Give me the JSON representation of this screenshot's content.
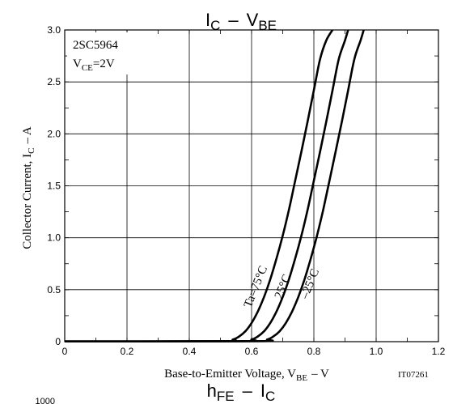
{
  "chart_data": {
    "type": "line",
    "title": {
      "main": "I",
      "main_sub": "C",
      "sep": "–",
      "second": "V",
      "second_sub": "BE"
    },
    "device": "2SC5964",
    "condition": {
      "main": "V",
      "sub": "CE",
      "rest": "=2V"
    },
    "xlabel": {
      "main": "Base-to-Emitter Voltage, V",
      "sub": "BE",
      "unit": "–  V"
    },
    "ylabel": {
      "main": "Collector Current, I",
      "sub": "C",
      "unit": "–  A"
    },
    "doc_code": "IT07261",
    "xlim": [
      0,
      1.2
    ],
    "ylim": [
      0,
      3.0
    ],
    "x_ticks": [
      "0",
      "0.2",
      "0.4",
      "0.6",
      "0.8",
      "1.0",
      "1.2"
    ],
    "x_tick_values": [
      0,
      0.2,
      0.4,
      0.6,
      0.8,
      1.0,
      1.2
    ],
    "y_ticks": [
      "0",
      "0.5",
      "1.0",
      "1.5",
      "2.0",
      "2.5",
      "3.0"
    ],
    "y_tick_values": [
      0,
      0.5,
      1.0,
      1.5,
      2.0,
      2.5,
      3.0
    ],
    "x_minor_step": 0.1,
    "y_minor_step": 0.25,
    "grid": true,
    "series": [
      {
        "name": "Ta=75°C",
        "x": [
          0,
          0.5,
          0.54,
          0.56,
          0.58,
          0.6,
          0.62,
          0.64,
          0.66,
          0.68,
          0.7,
          0.72,
          0.74,
          0.76,
          0.78,
          0.8,
          0.82,
          0.84,
          0.86
        ],
        "y": [
          0.002,
          0.005,
          0.02,
          0.05,
          0.1,
          0.18,
          0.29,
          0.43,
          0.6,
          0.8,
          1.02,
          1.27,
          1.55,
          1.83,
          2.12,
          2.42,
          2.72,
          2.9,
          3.0
        ]
      },
      {
        "name": "25°C",
        "x": [
          0,
          0.56,
          0.6,
          0.62,
          0.64,
          0.66,
          0.68,
          0.7,
          0.72,
          0.74,
          0.76,
          0.78,
          0.8,
          0.82,
          0.84,
          0.86,
          0.88,
          0.9,
          0.91
        ],
        "y": [
          0.002,
          0.005,
          0.02,
          0.05,
          0.1,
          0.18,
          0.29,
          0.43,
          0.6,
          0.8,
          1.02,
          1.27,
          1.55,
          1.83,
          2.12,
          2.42,
          2.72,
          2.9,
          3.0
        ]
      },
      {
        "name": "–25°C",
        "x": [
          0,
          0.61,
          0.65,
          0.67,
          0.69,
          0.71,
          0.73,
          0.75,
          0.77,
          0.79,
          0.81,
          0.83,
          0.85,
          0.87,
          0.89,
          0.91,
          0.93,
          0.95,
          0.96
        ],
        "y": [
          0.002,
          0.005,
          0.02,
          0.05,
          0.1,
          0.18,
          0.29,
          0.43,
          0.6,
          0.8,
          1.02,
          1.27,
          1.55,
          1.83,
          2.12,
          2.42,
          2.72,
          2.9,
          3.0
        ]
      }
    ],
    "next_title": {
      "main": "h",
      "main_sub": "FE",
      "sep": "–",
      "second": "I",
      "second_sub": "C"
    },
    "next_chart_y_top_label": "1000"
  }
}
